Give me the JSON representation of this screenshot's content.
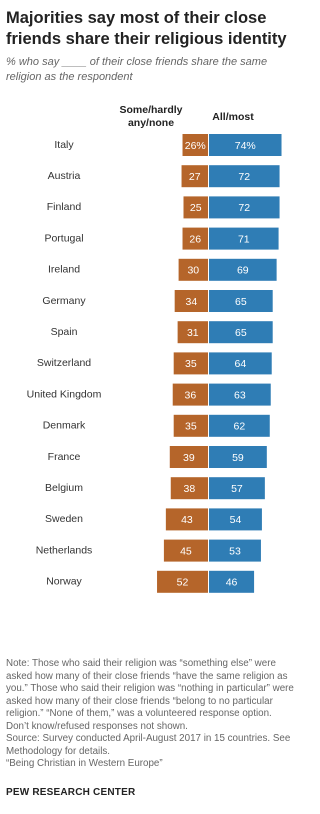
{
  "chart_data": {
    "type": "diverging-bar",
    "title": "Majorities say most of their close friends share their religious identity",
    "subtitle": "% who say ____ of their close friends share the same religion as the respondent",
    "categories": [
      "Italy",
      "Austria",
      "Finland",
      "Portugal",
      "Ireland",
      "Germany",
      "Spain",
      "Switzerland",
      "United Kingdom",
      "Denmark",
      "France",
      "Belgium",
      "Sweden",
      "Netherlands",
      "Norway"
    ],
    "series": [
      {
        "name": "Some/hardly any/none",
        "color": "#b5652a",
        "side": "left",
        "values": [
          26,
          27,
          25,
          26,
          30,
          34,
          31,
          35,
          36,
          35,
          39,
          38,
          43,
          45,
          52
        ],
        "value_labels": [
          "26%",
          "27",
          "25",
          "26",
          "30",
          "34",
          "31",
          "35",
          "36",
          "35",
          "39",
          "38",
          "43",
          "45",
          "52"
        ]
      },
      {
        "name": "All/most",
        "color": "#2f7db5",
        "side": "right",
        "values": [
          74,
          72,
          72,
          71,
          69,
          65,
          65,
          64,
          63,
          62,
          59,
          57,
          54,
          53,
          46
        ],
        "value_labels": [
          "74%",
          "72",
          "72",
          "71",
          "69",
          "65",
          "65",
          "64",
          "63",
          "62",
          "59",
          "57",
          "54",
          "53",
          "46"
        ]
      }
    ],
    "notes": [
      "Note: Those who said their religion was “something else” were asked how many of their close friends “have the same religion as you.” Those who said their religion was “nothing in particular” were asked how many of their close friends “belong to no particular religion.” “None of them,” was a volunteered response option.",
      "Don’t know/refused responses not shown.",
      "Source: Survey conducted April-August 2017 in 15 countries. See Methodology for details.",
      "“Being Christian in Western Europe”"
    ],
    "source_org": "PEW RESEARCH CENTER"
  }
}
